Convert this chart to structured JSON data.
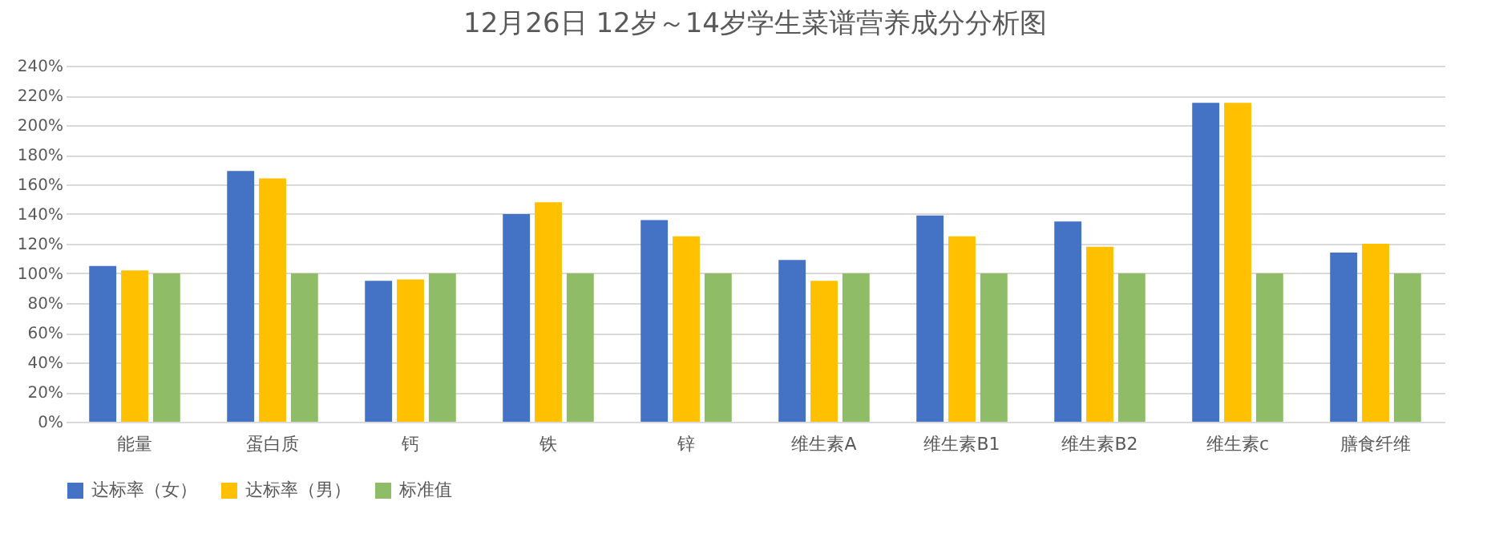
{
  "chart_data": {
    "type": "bar",
    "title": "12月26日 12岁～14岁学生菜谱营养成分分析图",
    "categories": [
      "能量",
      "蛋白质",
      "钙",
      "铁",
      "锌",
      "维生素A",
      "维生素B1",
      "维生素B2",
      "维生素c",
      "膳食纤维"
    ],
    "series": [
      {
        "name": "达标率（女）",
        "color": "#4472c4",
        "values": [
          105,
          169,
          95,
          140,
          136,
          109,
          139,
          135,
          215,
          114
        ]
      },
      {
        "name": "达标率（男）",
        "color": "#ffc000",
        "values": [
          102,
          164,
          96,
          148,
          125,
          95,
          125,
          118,
          215,
          120
        ]
      },
      {
        "name": "标准值",
        "color": "#8fbc66",
        "values": [
          100,
          100,
          100,
          100,
          100,
          100,
          100,
          100,
          100,
          100
        ]
      }
    ],
    "ylim": [
      0,
      240
    ],
    "yticks": [
      {
        "value": 0,
        "label": "0%"
      },
      {
        "value": 20,
        "label": "20%"
      },
      {
        "value": 40,
        "label": "40%"
      },
      {
        "value": 60,
        "label": "60%"
      },
      {
        "value": 80,
        "label": "80%"
      },
      {
        "value": 100,
        "label": "100%"
      },
      {
        "value": 120,
        "label": "120%"
      },
      {
        "value": 140,
        "label": "140%"
      },
      {
        "value": 160,
        "label": "160%"
      },
      {
        "value": 180,
        "label": "180%"
      },
      {
        "value": 200,
        "label": "200%"
      },
      {
        "value": 220,
        "label": "220%"
      },
      {
        "value": 240,
        "label": "240%"
      }
    ],
    "grid": "y",
    "legend": "bottom"
  }
}
